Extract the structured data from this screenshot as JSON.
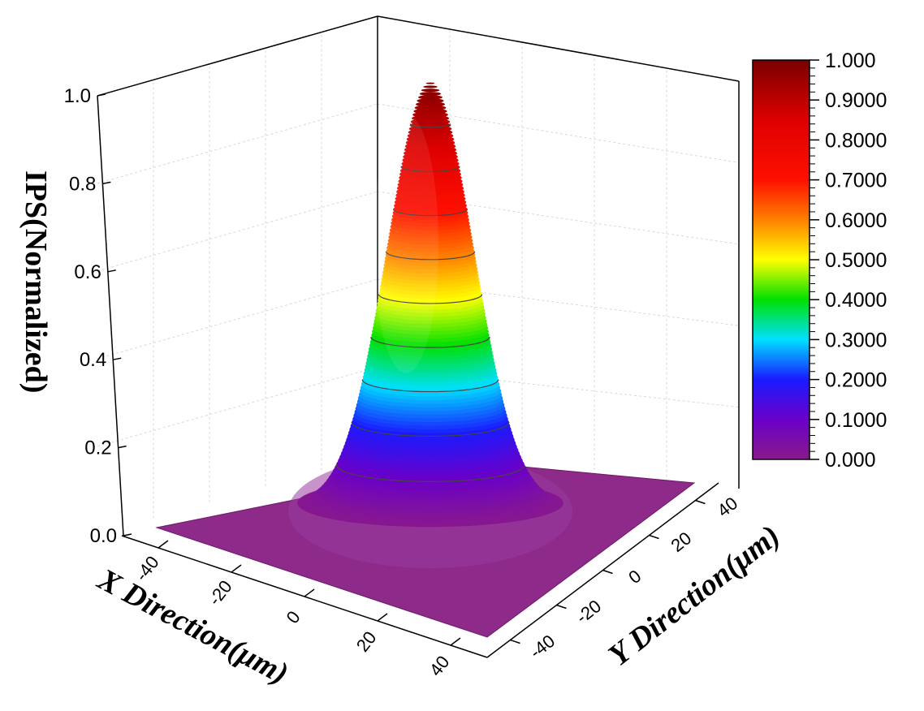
{
  "chart_data": {
    "type": "surface3d",
    "description_function": "IPS = exp(-(x^2+y^2)/(2*sigma^2)), peak at origin",
    "x": {
      "label": "X Direction(μm)",
      "ticks": [
        -40,
        -20,
        0,
        20,
        40
      ],
      "range": [
        -50,
        50
      ]
    },
    "y": {
      "label": "Y Direction(μm)",
      "ticks": [
        -40,
        -20,
        0,
        20,
        40
      ],
      "range": [
        -50,
        50
      ]
    },
    "z": {
      "label": "IPS(Normalized)",
      "ticks": [
        "0.0",
        "0.2",
        "0.4",
        "0.6",
        "0.8",
        "1.0"
      ],
      "range": [
        0,
        1
      ]
    },
    "peak": {
      "x": 0,
      "y": 0,
      "z": 1.0
    },
    "contour_levels": [
      0.1,
      0.2,
      0.3,
      0.4,
      0.5,
      0.6,
      0.7,
      0.8,
      0.9
    ],
    "colorbar": {
      "labels": [
        "1.000",
        "0.9000",
        "0.8000",
        "0.7000",
        "0.6000",
        "0.5000",
        "0.4000",
        "0.3000",
        "0.2000",
        "0.1000",
        "0.000"
      ],
      "range": [
        0,
        1
      ]
    },
    "colormap": [
      "#8a1a8a",
      "#6a00c8",
      "#1a1aff",
      "#00c8ff",
      "#00e000",
      "#ffff00",
      "#ff8000",
      "#ff0000",
      "#8b0000"
    ],
    "grid": true
  }
}
